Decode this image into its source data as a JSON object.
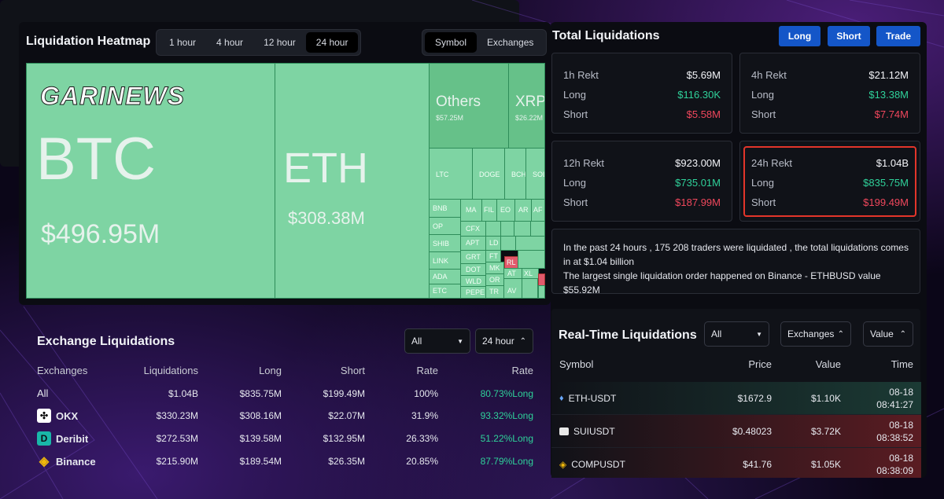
{
  "heatmap": {
    "title": "Liquidation Heatmap",
    "time_tabs": [
      "1 hour",
      "4 hour",
      "12 hour",
      "24 hour"
    ],
    "active_time": "24 hour",
    "view_tabs": [
      "Symbol",
      "Exchanges"
    ],
    "active_view": "Symbol",
    "watermark": "GARINEWS",
    "tiles": {
      "btc": {
        "symbol": "BTC",
        "value": "$496.95M"
      },
      "eth": {
        "symbol": "ETH",
        "value": "$308.38M"
      },
      "others": {
        "symbol": "Others",
        "value": "$57.25M"
      },
      "xrp": {
        "symbol": "XRP",
        "value": "$26.22M"
      },
      "ltc": "LTC",
      "doge": "DOGE",
      "bch": "BCH",
      "sol": "SOL",
      "bnb": "BNB",
      "op": "OP",
      "shib": "SHIB",
      "link": "LINK",
      "ada": "ADA",
      "etc": "ETC",
      "ma": "MA",
      "fil": "FIL",
      "eo": "EO",
      "ar": "AR",
      "af": "AF",
      "cfx": "CFX",
      "apt": "APT",
      "grt": "GRT",
      "dot": "DOT",
      "wld": "WLD",
      "pepe": "PEPE",
      "ld": "LD",
      "ft": "FT",
      "rl": "RL",
      "mk": "MK",
      "at": "AT",
      "or": "OR",
      "xl": "XL",
      "tr": "TR",
      "av": "AV"
    }
  },
  "total": {
    "title": "Total Liquidations",
    "buttons": [
      "Long",
      "Short",
      "Trade"
    ],
    "cards": [
      {
        "label": "1h Rekt",
        "total": "$5.69M",
        "long_label": "Long",
        "long": "$116.30K",
        "short_label": "Short",
        "short": "$5.58M"
      },
      {
        "label": "4h Rekt",
        "total": "$21.12M",
        "long_label": "Long",
        "long": "$13.38M",
        "short_label": "Short",
        "short": "$7.74M"
      },
      {
        "label": "12h Rekt",
        "total": "$923.00M",
        "long_label": "Long",
        "long": "$735.01M",
        "short_label": "Short",
        "short": "$187.99M"
      },
      {
        "label": "24h Rekt",
        "total": "$1.04B",
        "long_label": "Long",
        "long": "$835.75M",
        "short_label": "Short",
        "short": "$199.49M"
      }
    ],
    "summary_line1": "In the past 24 hours , 175 208 traders were liquidated , the total liquidations comes",
    "summary_line2": "in at $1.04 billion",
    "summary_line3": "The largest single liquidation order happened on Binance - ETHBUSD value $55.92M"
  },
  "exchange": {
    "title": "Exchange Liquidations",
    "filter_all": "All",
    "filter_time": "24 hour",
    "headers": [
      "Exchanges",
      "Liquidations",
      "Long",
      "Short",
      "Rate",
      "Rate"
    ],
    "rows": [
      {
        "name": "All",
        "liq": "$1.04B",
        "long": "$835.75M",
        "short": "$199.49M",
        "rate": "100%",
        "rate2": "80.73%Long"
      },
      {
        "name": "OKX",
        "liq": "$330.23M",
        "long": "$308.16M",
        "short": "$22.07M",
        "rate": "31.9%",
        "rate2": "93.32%Long"
      },
      {
        "name": "Deribit",
        "liq": "$272.53M",
        "long": "$139.58M",
        "short": "$132.95M",
        "rate": "26.33%",
        "rate2": "51.22%Long"
      },
      {
        "name": "Binance",
        "liq": "$215.90M",
        "long": "$189.54M",
        "short": "$26.35M",
        "rate": "20.85%",
        "rate2": "87.79%Long"
      }
    ]
  },
  "realtime": {
    "title": "Real-Time Liquidations",
    "filter_all": "All",
    "filter_exchanges": "Exchanges",
    "filter_value": "Value",
    "headers": [
      "Symbol",
      "Price",
      "Value",
      "Time"
    ],
    "rows": [
      {
        "symbol": "ETH-USDT",
        "price": "$1672.9",
        "value": "$1.10K",
        "date": "08-18",
        "time": "08:41:27",
        "side": "long"
      },
      {
        "symbol": "SUIUSDT",
        "price": "$0.48023",
        "value": "$3.72K",
        "date": "08-18",
        "time": "08:38:52",
        "side": "short"
      },
      {
        "symbol": "COMPUSDT",
        "price": "$41.76",
        "value": "$1.05K",
        "date": "08-18",
        "time": "08:38:09",
        "side": "short"
      }
    ]
  },
  "colors": {
    "long": "#2fd19a",
    "short": "#f0475c",
    "accent": "#1456c8",
    "tile": "#7ed4a3"
  }
}
